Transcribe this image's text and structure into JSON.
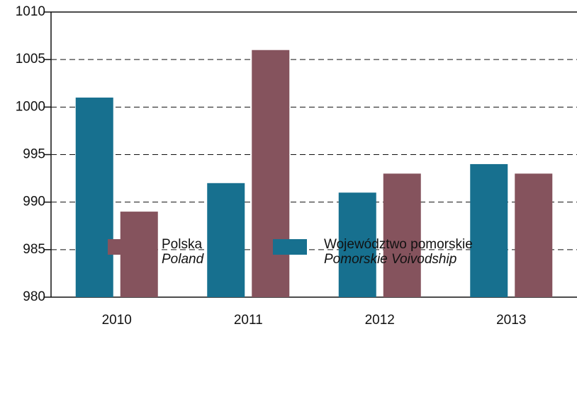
{
  "chart_data": {
    "type": "bar",
    "categories": [
      "2010",
      "2011",
      "2012",
      "2013"
    ],
    "series": [
      {
        "name": "Województwo pomorskie",
        "name_en": "Pomorskie Voivodship",
        "color": "#17708f",
        "values": [
          1001,
          992,
          991,
          994
        ]
      },
      {
        "name": "Polska",
        "name_en": "Poland",
        "color": "#85535d",
        "values": [
          989,
          1006,
          993,
          993
        ]
      }
    ],
    "ylim": [
      980,
      1010
    ],
    "yticks": [
      980,
      985,
      990,
      995,
      1000,
      1005,
      1010
    ],
    "grid": true
  }
}
